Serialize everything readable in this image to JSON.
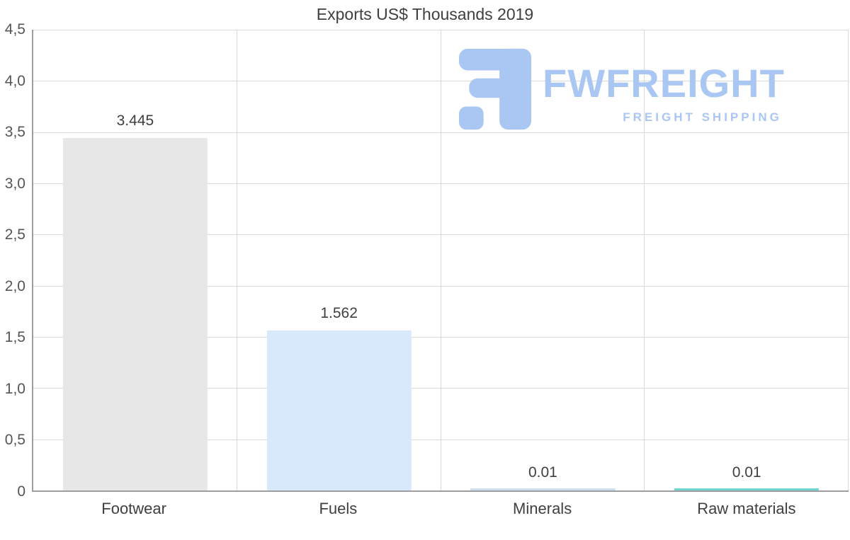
{
  "title": "Exports US$ Thousands 2019",
  "logo": {
    "name": "FWFREIGHT",
    "tagline": "FREIGHT SHIPPING",
    "color": "#a9c7f2"
  },
  "chart_data": {
    "type": "bar",
    "title": "Exports US$ Thousands 2019",
    "categories": [
      "Footwear",
      "Fuels",
      "Minerals",
      "Raw materials"
    ],
    "values": [
      3.445,
      1.562,
      0.01,
      0.01
    ],
    "value_labels": [
      "3.445",
      "1.562",
      "0.01",
      "0.01"
    ],
    "bar_colors": [
      "#e7e7e7",
      "#d9e9fc",
      "#cfdfee",
      "#6fd6d0"
    ],
    "xlabel": "",
    "ylabel": "",
    "ylim": [
      0,
      4.5
    ],
    "y_tick_labels": [
      "4,5",
      "4,0",
      "3,5",
      "3,0",
      "2,5",
      "2,0",
      "1,5",
      "1,0",
      "0,5",
      "0"
    ],
    "grid": true,
    "legend_position": "none"
  }
}
